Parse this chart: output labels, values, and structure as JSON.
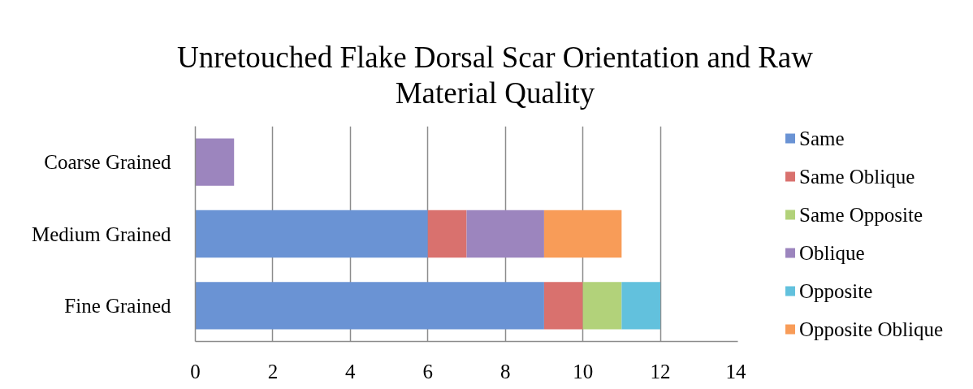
{
  "chart_data": {
    "type": "bar",
    "orientation": "horizontal",
    "stacked": true,
    "title": "Unretouched Flake Dorsal Scar Orientation and Raw Material Quality",
    "categories": [
      "Coarse Grained",
      "Medium Grained",
      "Fine Grained"
    ],
    "series": [
      {
        "name": "Same",
        "color": "#6a93d4",
        "values": [
          0,
          6,
          9
        ]
      },
      {
        "name": "Same Oblique",
        "color": "#d9716e",
        "values": [
          0,
          1,
          1
        ]
      },
      {
        "name": "Same Opposite",
        "color": "#b2d27a",
        "values": [
          0,
          0,
          1
        ]
      },
      {
        "name": "Oblique",
        "color": "#9c85be",
        "values": [
          1,
          2,
          0
        ]
      },
      {
        "name": "Opposite",
        "color": "#62c1dd",
        "values": [
          0,
          0,
          1
        ]
      },
      {
        "name": "Opposite Oblique",
        "color": "#f89c58",
        "values": [
          0,
          2,
          0
        ]
      }
    ],
    "xlim": [
      0,
      14
    ],
    "xticks": [
      0,
      2,
      4,
      6,
      8,
      10,
      12,
      14
    ],
    "grid": "x",
    "legend": "right"
  }
}
